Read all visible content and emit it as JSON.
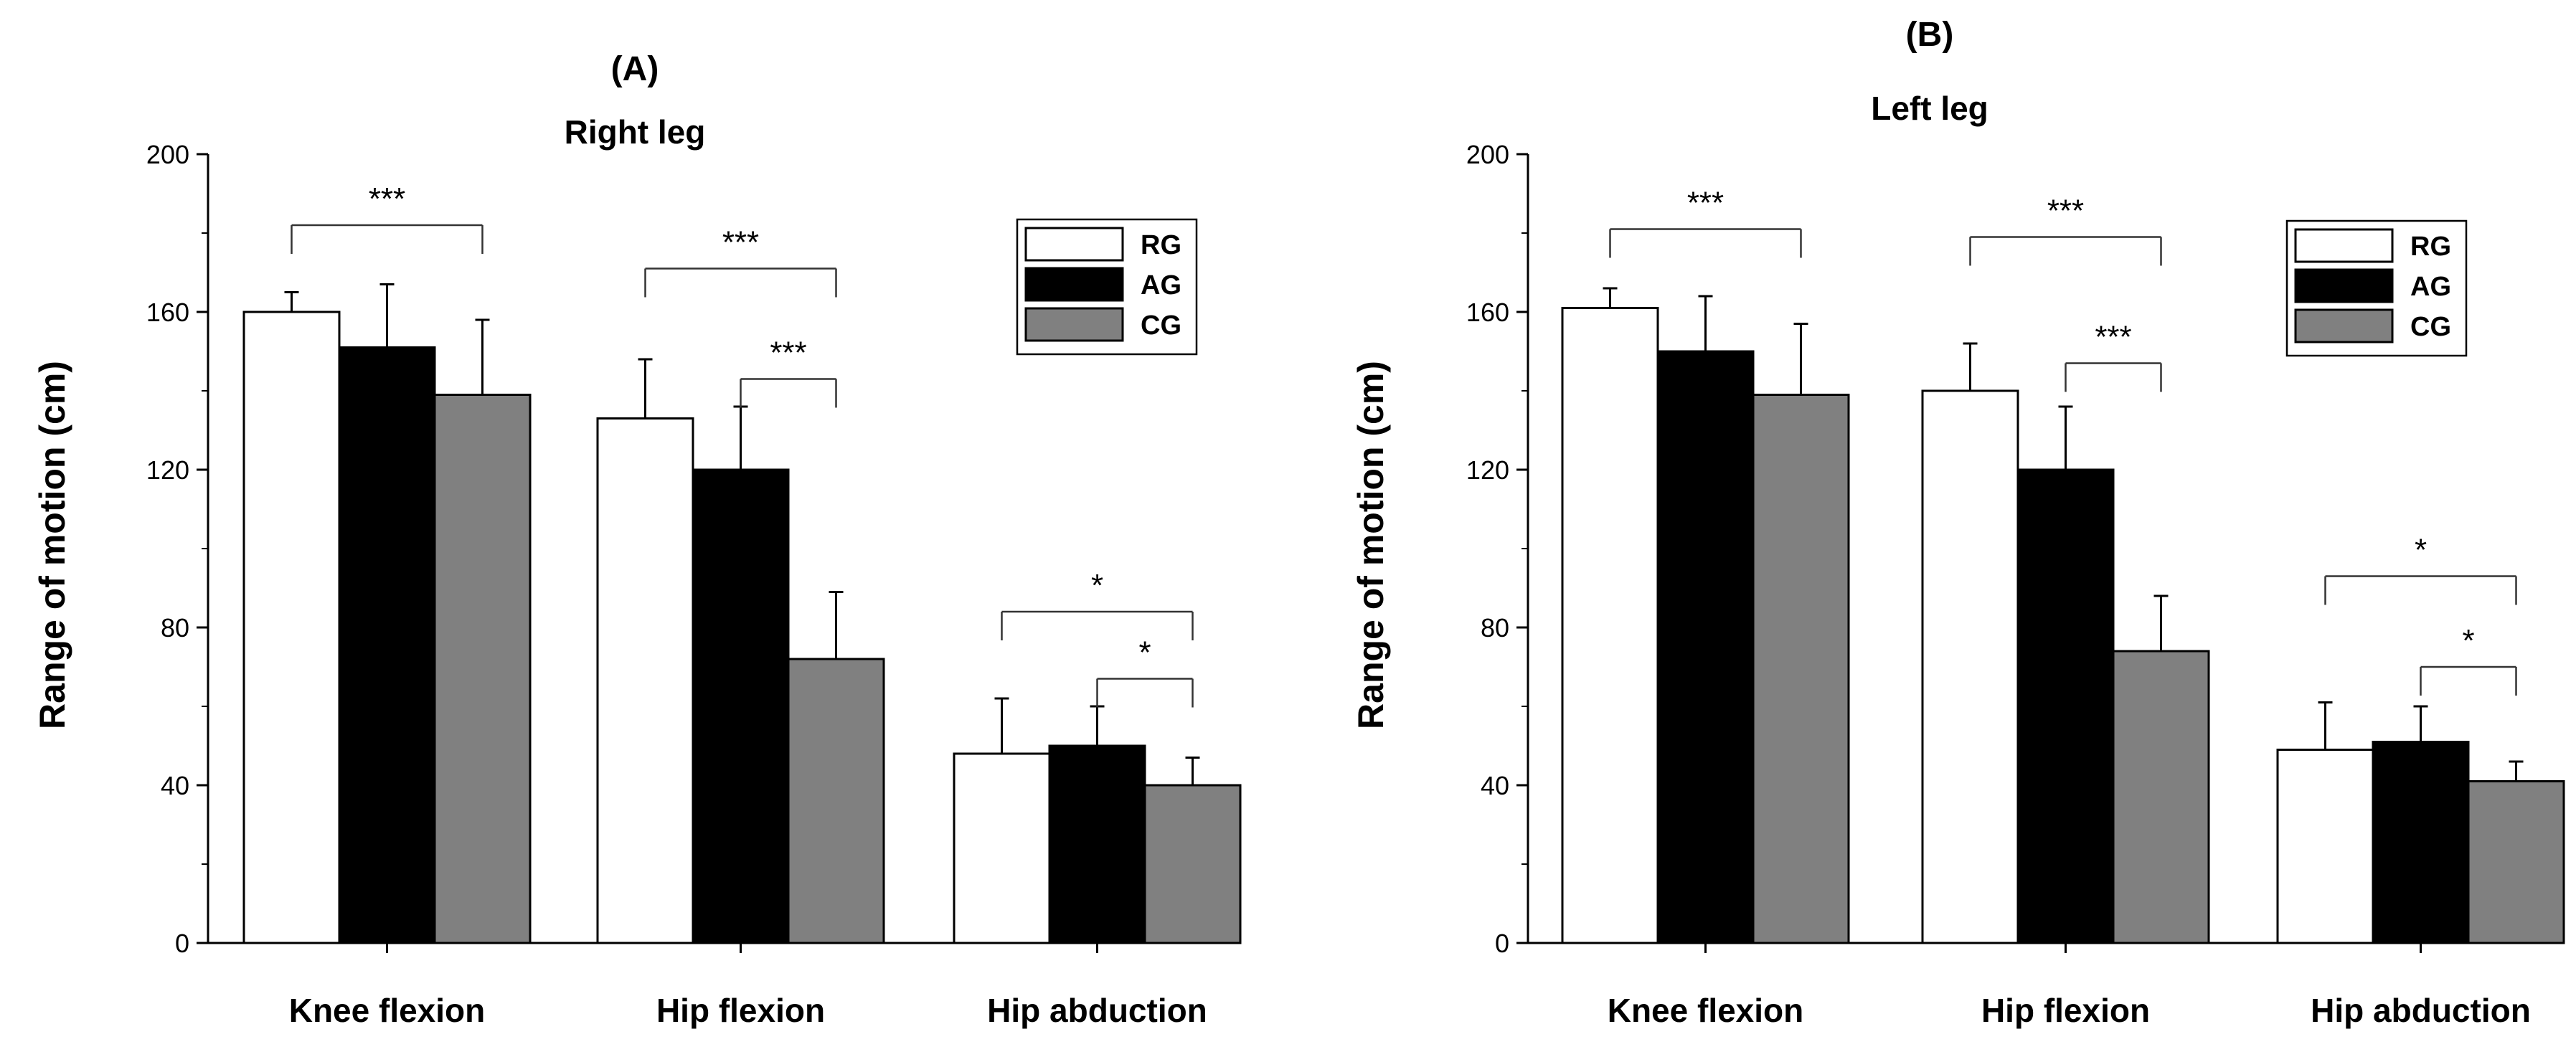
{
  "chart_data": [
    {
      "type": "bar",
      "panel": "(A)",
      "title": "Right leg",
      "ylabel": "Range of motion (cm)",
      "xlabel": "",
      "ylim": [
        0,
        200
      ],
      "yticks": [
        "0",
        "40",
        "80",
        "120",
        "160",
        "200"
      ],
      "categories": [
        "Knee flexion",
        "Hip flexion",
        "Hip abduction"
      ],
      "series": [
        {
          "name": "RG",
          "color": "#ffffff",
          "values": [
            160,
            133,
            48
          ],
          "errors": [
            5,
            15,
            14
          ]
        },
        {
          "name": "AG",
          "color": "#000000",
          "values": [
            151,
            120,
            50
          ],
          "errors": [
            16,
            16,
            10
          ]
        },
        {
          "name": "CG",
          "color": "#808080",
          "values": [
            139,
            72,
            40
          ],
          "errors": [
            19,
            17,
            7
          ]
        }
      ],
      "significance": [
        {
          "label": "***",
          "category": 0,
          "from": "RG",
          "to": "CG",
          "y": 182
        },
        {
          "label": "***",
          "category": 1,
          "from": "RG",
          "to": "CG",
          "y": 171
        },
        {
          "label": "***",
          "category": 1,
          "from": "AG",
          "to": "CG",
          "y": 143
        },
        {
          "label": "*",
          "category": 2,
          "from": "RG",
          "to": "CG",
          "y": 84
        },
        {
          "label": "*",
          "category": 2,
          "from": "AG",
          "to": "CG",
          "y": 67
        }
      ],
      "legend": {
        "entries": [
          "RG",
          "AG",
          "CG"
        ],
        "placement": "top-right"
      }
    },
    {
      "type": "bar",
      "panel": "(B)",
      "title": "Left leg",
      "ylabel": "Range of motion (cm)",
      "xlabel": "",
      "ylim": [
        0,
        200
      ],
      "yticks": [
        "0",
        "40",
        "80",
        "120",
        "160",
        "200"
      ],
      "categories": [
        "Knee flexion",
        "Hip flexion",
        "Hip abduction"
      ],
      "series": [
        {
          "name": "RG",
          "color": "#ffffff",
          "values": [
            161,
            140,
            49
          ],
          "errors": [
            5,
            12,
            12
          ]
        },
        {
          "name": "AG",
          "color": "#000000",
          "values": [
            150,
            120,
            51
          ],
          "errors": [
            14,
            16,
            9
          ]
        },
        {
          "name": "CG",
          "color": "#808080",
          "values": [
            139,
            74,
            41
          ],
          "errors": [
            18,
            14,
            5
          ]
        }
      ],
      "significance": [
        {
          "label": "***",
          "category": 0,
          "from": "RG",
          "to": "CG",
          "y": 181
        },
        {
          "label": "***",
          "category": 1,
          "from": "RG",
          "to": "CG",
          "y": 179
        },
        {
          "label": "***",
          "category": 1,
          "from": "AG",
          "to": "CG",
          "y": 147
        },
        {
          "label": "*",
          "category": 2,
          "from": "RG",
          "to": "CG",
          "y": 93
        },
        {
          "label": "*",
          "category": 2,
          "from": "AG",
          "to": "CG",
          "y": 70
        }
      ],
      "legend": {
        "entries": [
          "RG",
          "AG",
          "CG"
        ],
        "placement": "top-right"
      }
    }
  ]
}
